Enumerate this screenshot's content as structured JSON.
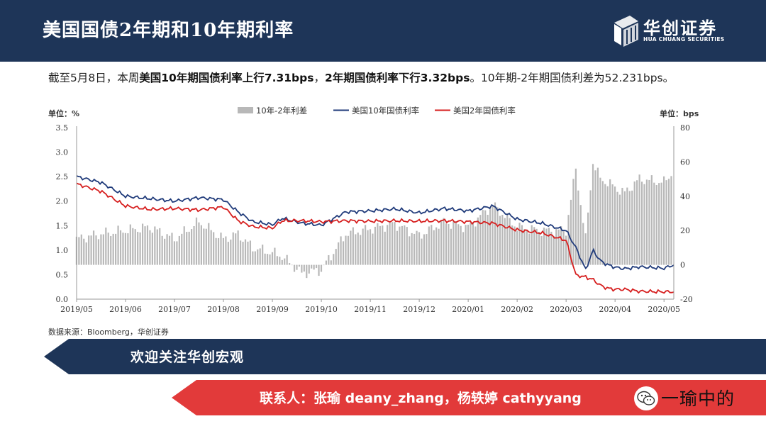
{
  "header": {
    "title": "美国国债2年期和10年期利率"
  },
  "logo": {
    "name": "华创证券",
    "name_en": "HUA CHUANG SECURITIES"
  },
  "summary": {
    "p1": "截至5月8日，本周",
    "b1": "美国10年期国债利率上行7.31bps",
    "p2": "，",
    "b2": "2年期国债利率下行3.32bps",
    "p3": "。10年期-2年期国债利差为52.231bps。"
  },
  "source": "数据来源：Bloomberg，华创证券",
  "banner1": "欢迎关注华创宏观",
  "banner2": "联系人：张瑜 deany_zhang，杨轶婷 cathyyang",
  "watermark": "一瑜中的",
  "colors": {
    "header": "#1e3558",
    "bar": "#b8b8b8",
    "us10y": "#1f3a7a",
    "us2y": "#d61e1e",
    "banner_red": "#e23a3a"
  },
  "chart_data": {
    "type": "bar+line",
    "left_unit": "单位：%",
    "right_unit": "单位：bps",
    "left_ticks": [
      "0.0",
      "0.5",
      "1.0",
      "1.5",
      "2.0",
      "2.5",
      "3.0",
      "3.5"
    ],
    "right_ticks": [
      "-20",
      "0",
      "20",
      "40",
      "60",
      "80"
    ],
    "ylim_left": [
      0,
      3.5
    ],
    "ylim_right": [
      -20,
      80
    ],
    "x_ticks": [
      "2019/05",
      "2019/06",
      "2019/07",
      "2019/08",
      "2019/09",
      "2019/10",
      "2019/11",
      "2019/12",
      "2020/01",
      "2020/02",
      "2020/03",
      "2020/04",
      "2020/05"
    ],
    "legend": [
      "10年-2年利差",
      "美国10年国债利率",
      "美国2年国债利率"
    ],
    "x": [
      0,
      0.5,
      1,
      1.5,
      2,
      2.5,
      3,
      3.3,
      3.6,
      4,
      4.2,
      4.6,
      5,
      5.5,
      6,
      6.5,
      7,
      7.5,
      8,
      8.5,
      9,
      9.5,
      10,
      10.2,
      10.4,
      10.55,
      10.7,
      10.85,
      11,
      11.2,
      11.5,
      12,
      12.2
    ],
    "us10y": [
      2.5,
      2.38,
      2.1,
      2.05,
      2.0,
      2.07,
      2.03,
      1.78,
      1.58,
      1.52,
      1.65,
      1.55,
      1.51,
      1.78,
      1.8,
      1.84,
      1.76,
      1.85,
      1.8,
      1.9,
      1.63,
      1.55,
      1.4,
      1.05,
      0.6,
      1.0,
      0.78,
      0.7,
      0.65,
      0.62,
      0.66,
      0.63,
      0.7
    ],
    "us2y": [
      2.35,
      2.2,
      1.9,
      1.83,
      1.85,
      1.82,
      1.88,
      1.6,
      1.48,
      1.45,
      1.6,
      1.6,
      1.58,
      1.6,
      1.59,
      1.6,
      1.59,
      1.6,
      1.58,
      1.55,
      1.41,
      1.35,
      1.2,
      0.49,
      0.45,
      0.4,
      0.28,
      0.22,
      0.2,
      0.2,
      0.16,
      0.15,
      0.15
    ],
    "spread": [
      15,
      18,
      20,
      22,
      15,
      25,
      15,
      18,
      10,
      7,
      5,
      -5,
      -3,
      18,
      21,
      24,
      17,
      25,
      22,
      35,
      22,
      20,
      20,
      56,
      15,
      60,
      50,
      48,
      45,
      42,
      50,
      48,
      55
    ]
  }
}
